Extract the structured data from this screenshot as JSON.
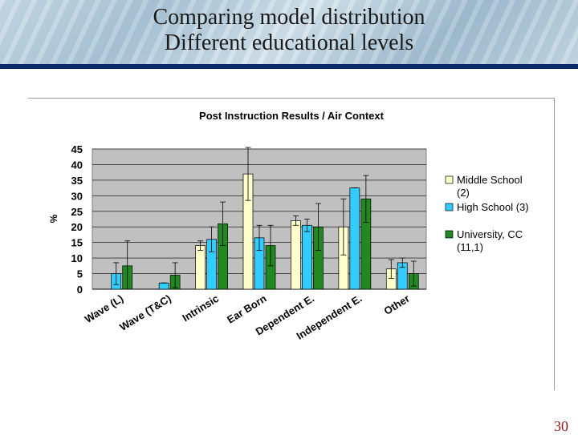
{
  "slide": {
    "title_line1": "Comparing model distribution",
    "title_line2": "Different educational levels",
    "page_number": "30"
  },
  "colors": {
    "title_bar": "#0a2a6a",
    "middle_school": "#ffffcc",
    "high_school": "#33ccff",
    "university": "#228822",
    "plot_bg": "#c0c0c0",
    "page_number": "#8b1a1a"
  },
  "chart_data": {
    "type": "bar",
    "title": "Post Instruction Results / Air Context",
    "ylabel": "%",
    "xlabel": "",
    "ylim": [
      0,
      45
    ],
    "yticks": [
      0,
      5,
      10,
      15,
      20,
      25,
      30,
      35,
      40,
      45
    ],
    "categories": [
      "Wave (L)",
      "Wave (T&C)",
      "Intrinsic",
      "Ear Born",
      "Dependent E.",
      "Independent E.",
      "Other"
    ],
    "legend_position": "right",
    "series": [
      {
        "name": "Middle School (2)",
        "values": [
          0,
          0,
          14,
          37,
          22,
          20,
          6.5
        ],
        "errors": [
          0,
          0,
          1.5,
          8.5,
          1.5,
          9,
          3
        ],
        "color": "#ffffcc"
      },
      {
        "name": "High School (3)",
        "values": [
          5,
          2,
          16,
          16.5,
          20.5,
          32.5,
          8.5
        ],
        "errors": [
          3.5,
          0,
          4,
          4,
          2,
          0,
          1.5
        ],
        "color": "#33ccff"
      },
      {
        "name": "University, CC (11,1)",
        "values": [
          7.5,
          4.5,
          21,
          14,
          20,
          29,
          5
        ],
        "errors": [
          8,
          4,
          7,
          6.5,
          7.5,
          7.5,
          4
        ],
        "color": "#228822"
      }
    ]
  }
}
